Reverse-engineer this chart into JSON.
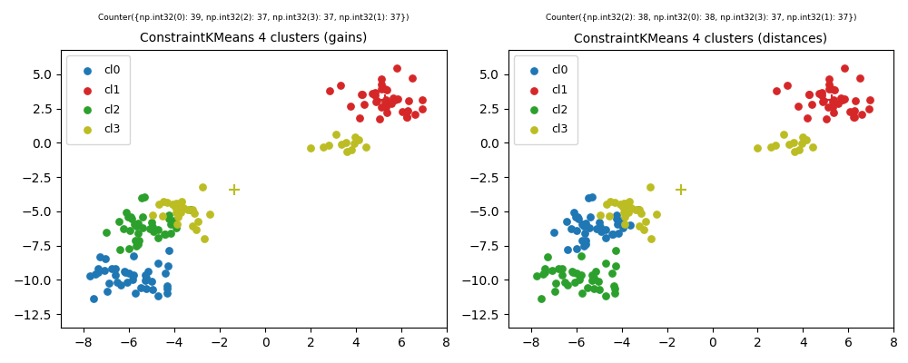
{
  "title1": "ConstraintKMeans 4 clusters (gains)",
  "title2": "ConstraintKMeans 4 clusters (distances)",
  "subtitle1": "Counter({np.int32(0): 39, np.int32(2): 37, np.int32(3): 37, np.int32(1): 37})",
  "subtitle2": "Counter({np.int32(2): 38, np.int32(0): 38, np.int32(3): 37, np.int32(1): 37})",
  "cluster_labels": [
    "cl0",
    "cl1",
    "cl2",
    "cl3"
  ],
  "cluster_colors": [
    "#1f77b4",
    "#d62728",
    "#2ca02c",
    "#bcbd22"
  ],
  "xlim": [
    -9.0,
    8.0
  ],
  "ylim": [
    -13.5,
    6.8
  ],
  "figsize": [
    10.0,
    4.0
  ],
  "dpi": 100,
  "marker_size": 28,
  "centroid_marker_size": 80,
  "subtitle_fontsize": 6.5,
  "title_fontsize": 10,
  "legend_fontsize": 9
}
